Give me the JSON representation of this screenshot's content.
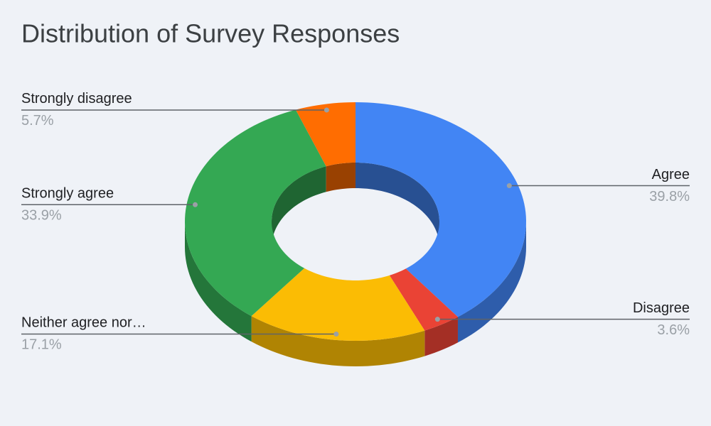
{
  "chart_data": {
    "type": "donut",
    "title": "Distribution of Survey Responses",
    "categories": [
      "Agree",
      "Disagree",
      "Neither agree nor…",
      "Strongly agree",
      "Strongly disagree"
    ],
    "values": [
      39.8,
      3.6,
      17.1,
      33.9,
      5.7
    ],
    "value_labels": [
      "39.8%",
      "3.6%",
      "17.1%",
      "33.9%",
      "5.7%"
    ],
    "colors": [
      "#4285f4",
      "#ea4335",
      "#fbbc04",
      "#34a853",
      "#ff6d01"
    ]
  }
}
